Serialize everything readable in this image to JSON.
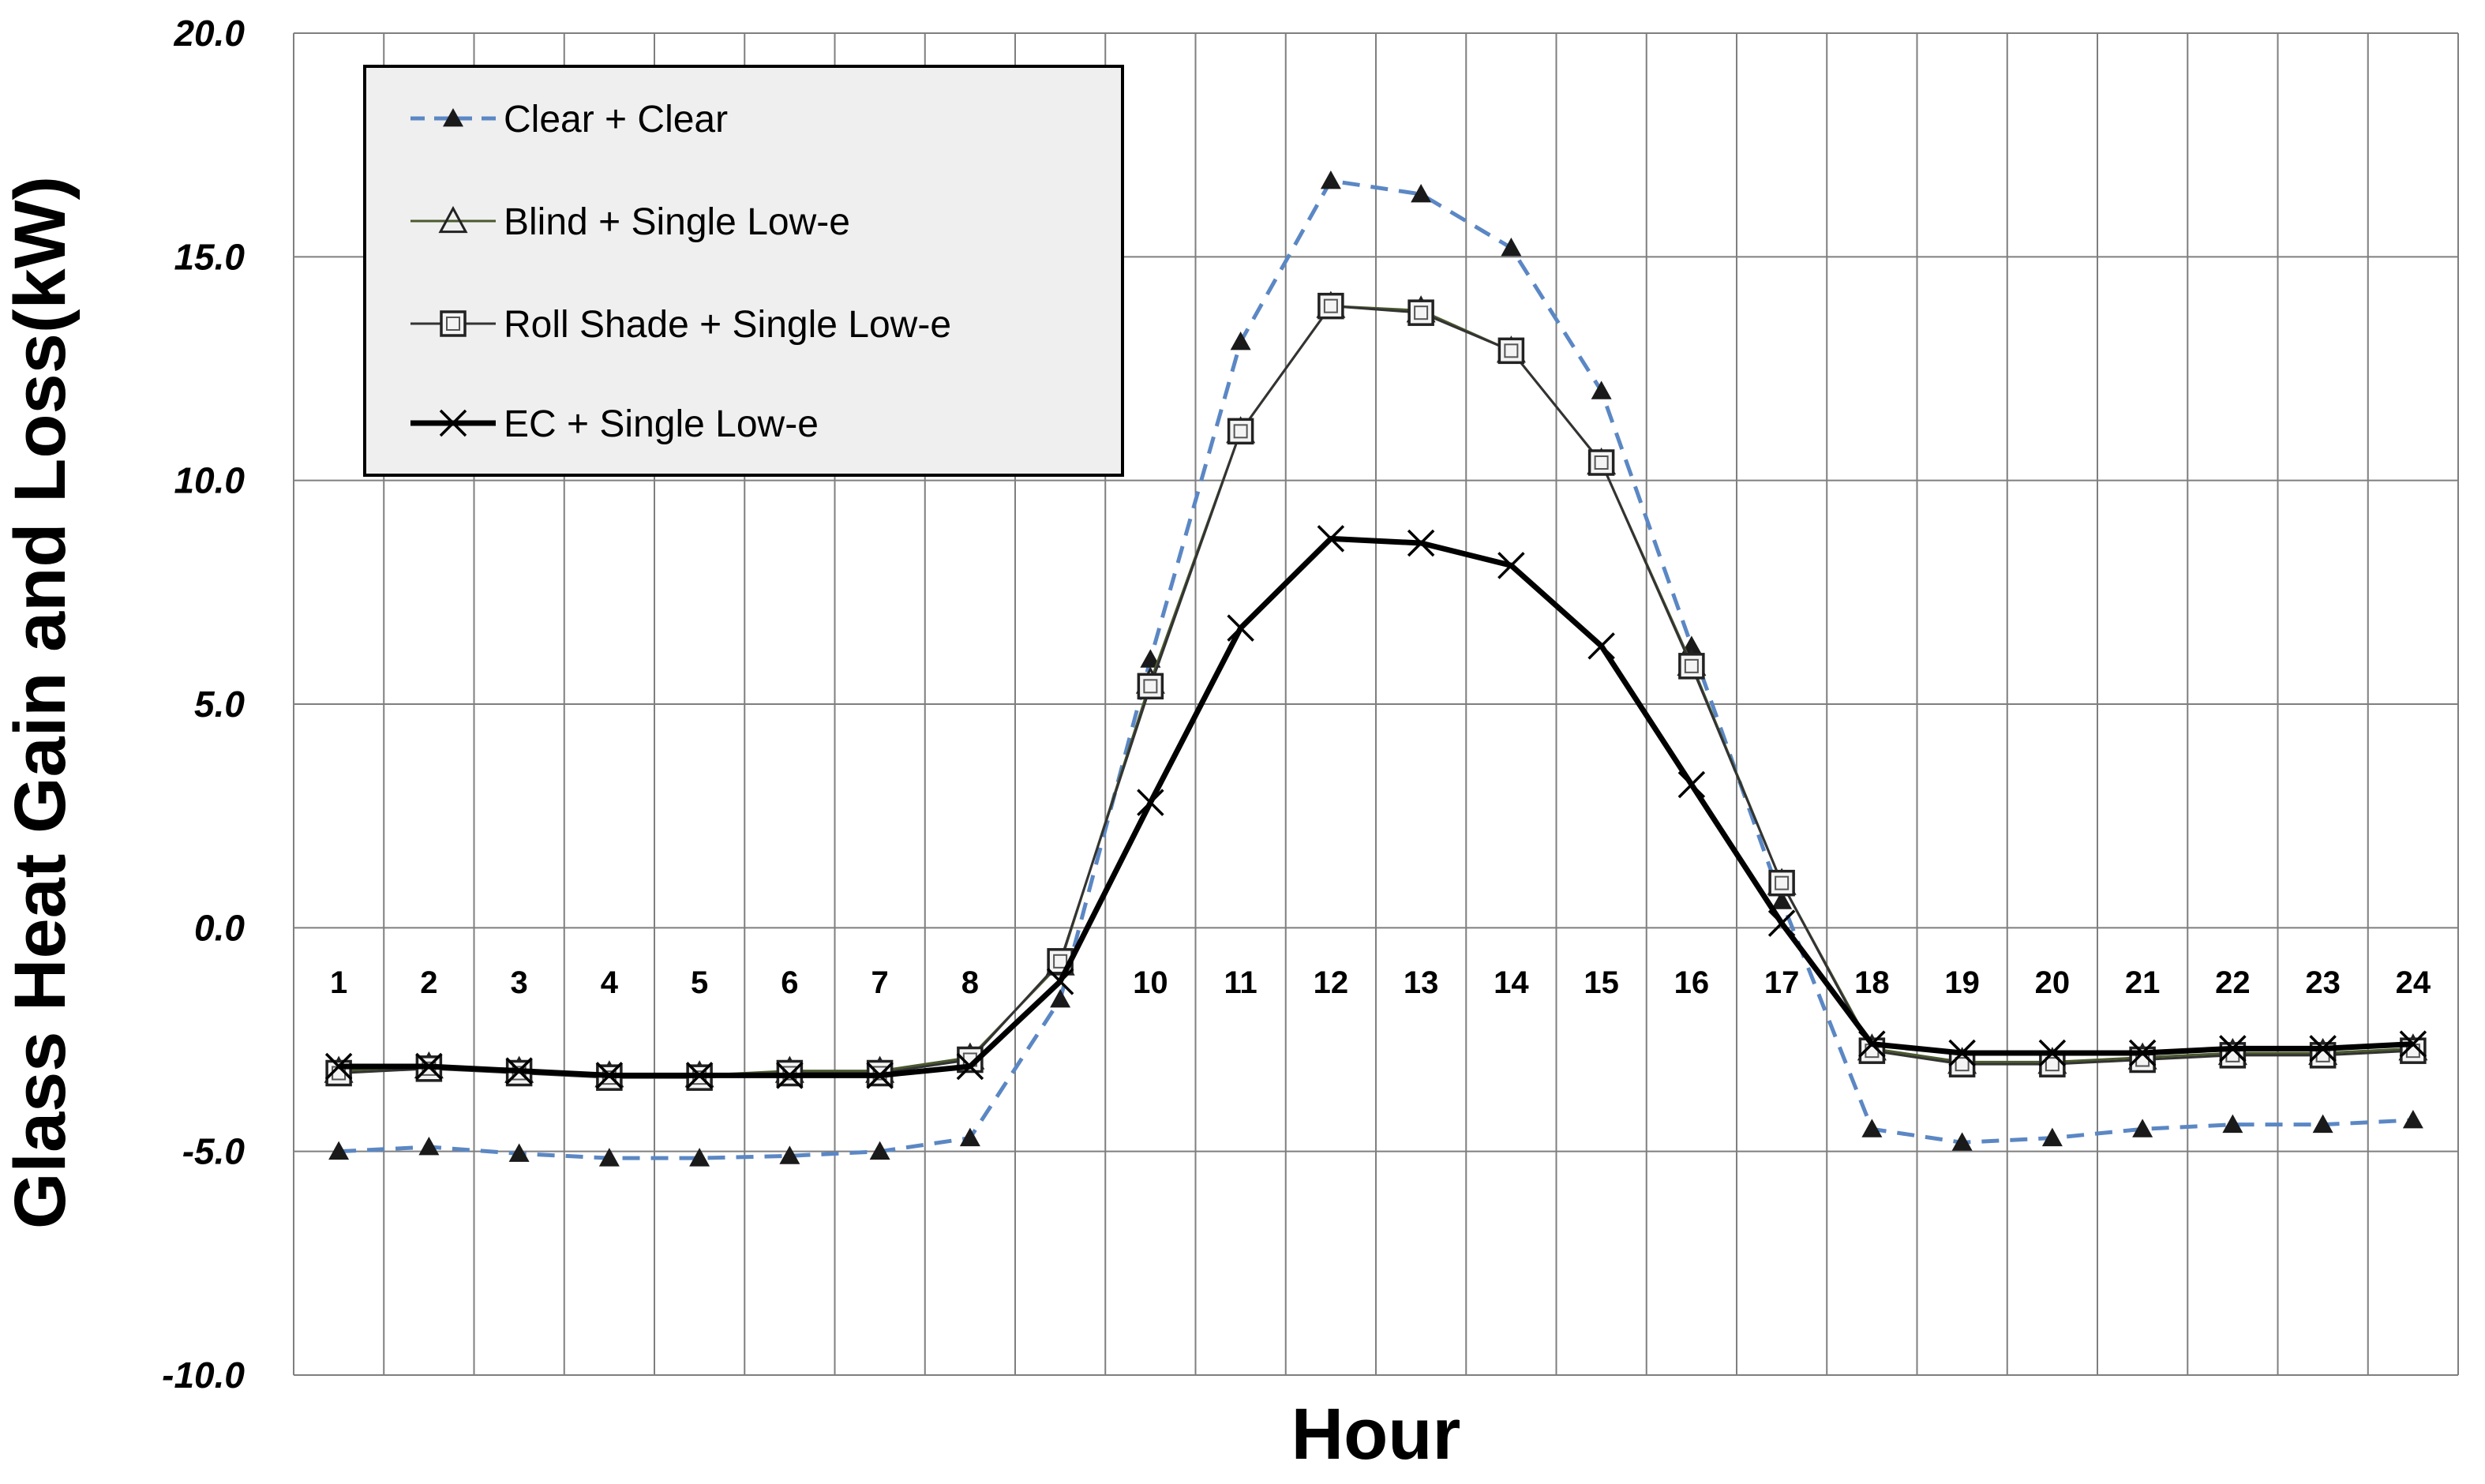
{
  "chart_data": {
    "type": "line",
    "title": "",
    "xlabel": "Hour",
    "ylabel": "Glass Heat Gain and Loss(kW)",
    "ylim": [
      -10,
      20
    ],
    "yticks": [
      -10,
      -5,
      0,
      5,
      10,
      15,
      20
    ],
    "ytick_labels": [
      "-10.0",
      "-5.0",
      "0.0",
      "5.0",
      "10.0",
      "15.0",
      "20.0"
    ],
    "categories": [
      "1",
      "2",
      "3",
      "4",
      "5",
      "6",
      "7",
      "8",
      "9",
      "10",
      "11",
      "12",
      "13",
      "14",
      "15",
      "16",
      "17",
      "18",
      "19",
      "20",
      "21",
      "22",
      "23",
      "24"
    ],
    "category_labels": [
      "1",
      "2",
      "3",
      "4",
      "5",
      "6",
      "7",
      "8",
      "",
      "10",
      "11",
      "12",
      "13",
      "14",
      "15",
      "16",
      "17",
      "18",
      "19",
      "20",
      "21",
      "22",
      "23",
      "24"
    ],
    "grid": true,
    "legend_position": "top-left",
    "series": [
      {
        "name": "Clear + Clear",
        "color": "#5b87c4",
        "marker": "filled-triangle",
        "dash": true,
        "values": [
          -5.0,
          -4.9,
          -5.05,
          -5.15,
          -5.15,
          -5.1,
          -5.0,
          -4.7,
          -1.6,
          6.0,
          13.1,
          16.7,
          16.4,
          15.2,
          12.0,
          6.3,
          0.6,
          -4.5,
          -4.8,
          -4.7,
          -4.5,
          -4.4,
          -4.4,
          -4.3
        ]
      },
      {
        "name": "Blind + Single Low-e",
        "color": "#4a5a2e",
        "marker": "open-triangle",
        "dash": false,
        "values": [
          -3.2,
          -3.1,
          -3.2,
          -3.3,
          -3.3,
          -3.2,
          -3.2,
          -2.9,
          -0.8,
          5.5,
          11.1,
          13.9,
          13.8,
          12.9,
          10.4,
          5.9,
          1.0,
          -2.7,
          -3.0,
          -3.0,
          -2.9,
          -2.8,
          -2.8,
          -2.7
        ]
      },
      {
        "name": "Roll Shade + Single Low-e",
        "color": "#333333",
        "marker": "open-square",
        "dash": false,
        "values": [
          -3.25,
          -3.15,
          -3.25,
          -3.35,
          -3.35,
          -3.25,
          -3.25,
          -2.95,
          -0.75,
          5.4,
          11.1,
          13.9,
          13.75,
          12.9,
          10.4,
          5.85,
          1.0,
          -2.75,
          -3.05,
          -3.05,
          -2.95,
          -2.85,
          -2.85,
          -2.75
        ]
      },
      {
        "name": "EC + Single Low-e",
        "color": "#000000",
        "marker": "x",
        "dash": false,
        "values": [
          -3.1,
          -3.1,
          -3.2,
          -3.3,
          -3.3,
          -3.3,
          -3.3,
          -3.1,
          -1.2,
          2.8,
          6.7,
          8.7,
          8.6,
          8.1,
          6.3,
          3.2,
          0.1,
          -2.6,
          -2.8,
          -2.8,
          -2.8,
          -2.7,
          -2.7,
          -2.6
        ]
      }
    ]
  }
}
